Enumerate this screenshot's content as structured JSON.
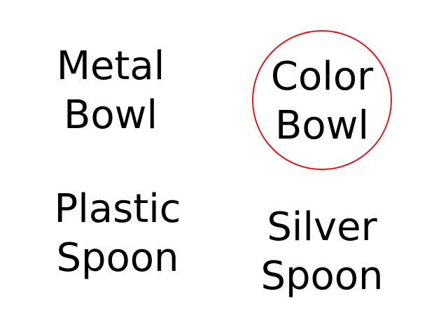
{
  "items": [
    {
      "line1": "Metal",
      "line2": "Bowl"
    },
    {
      "line1": "Color",
      "line2": "Bowl"
    },
    {
      "line1": "Plastic",
      "line2": "Spoon"
    },
    {
      "line1": "Silver",
      "line2": "Spoon"
    }
  ],
  "selection": {
    "selected_index": 1,
    "ring_color": "#e0161b"
  }
}
